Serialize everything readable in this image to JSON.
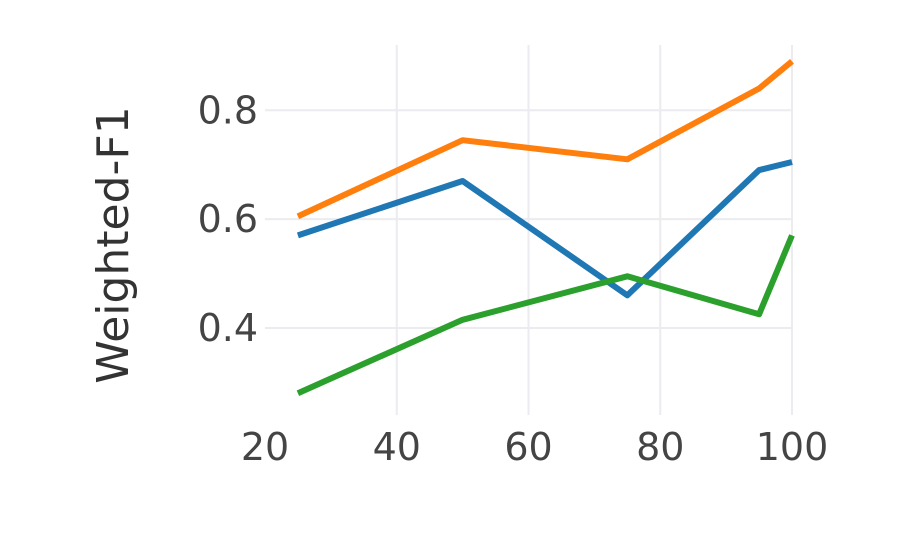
{
  "chart_data": {
    "type": "line",
    "title": "",
    "xlabel": "",
    "ylabel": "Weighted-F1",
    "xlim": [
      20,
      100
    ],
    "ylim": [
      0.24,
      0.92
    ],
    "xticks": [
      20,
      40,
      60,
      80,
      100
    ],
    "xtick_labels": [
      "20",
      "40",
      "60",
      "80",
      "100"
    ],
    "yticks": [
      0.4,
      0.6,
      0.8
    ],
    "ytick_labels": [
      "0.4",
      "0.6",
      "0.8"
    ],
    "grid": true,
    "legend": "none",
    "series": [
      {
        "color": "#1f77b4",
        "points": [
          [
            25,
            0.57
          ],
          [
            50,
            0.67
          ],
          [
            75,
            0.46
          ],
          [
            95,
            0.69
          ],
          [
            100,
            0.705
          ]
        ]
      },
      {
        "color": "#ff7f0e",
        "points": [
          [
            25,
            0.605
          ],
          [
            50,
            0.745
          ],
          [
            75,
            0.71
          ],
          [
            95,
            0.84
          ],
          [
            100,
            0.89
          ]
        ]
      },
      {
        "color": "#2ca02c",
        "points": [
          [
            25,
            0.28
          ],
          [
            50,
            0.415
          ],
          [
            75,
            0.495
          ],
          [
            95,
            0.425
          ],
          [
            100,
            0.57
          ]
        ]
      }
    ]
  }
}
